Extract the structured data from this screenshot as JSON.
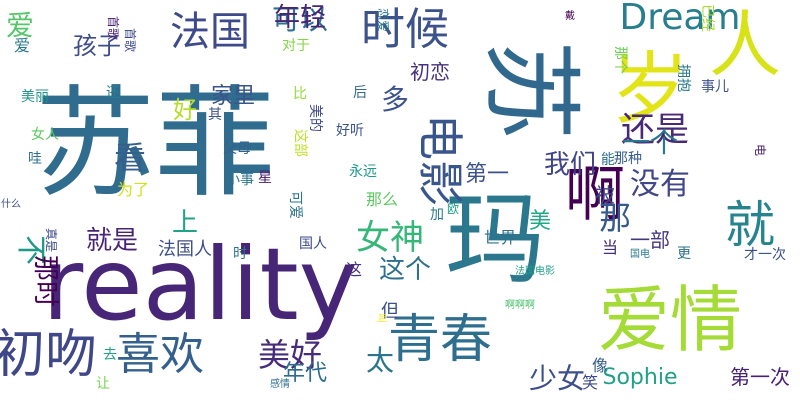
{
  "palette": {
    "dark_purple": "#440154",
    "indigo": "#46327e",
    "blue": "#365c8d",
    "teal": "#277f8e",
    "teal_green": "#1fa187",
    "green": "#4ac16d",
    "lime": "#a0da39",
    "yellow": "#fde725"
  },
  "words": [
    {
      "text": "苏菲",
      "color": "#2f6c8e"
    },
    {
      "text": "reality",
      "color": "#482677"
    },
    {
      "text": "苏",
      "color": "#31688e"
    },
    {
      "text": "岁",
      "color": "#e2e418"
    },
    {
      "text": "人",
      "color": "#d8e219"
    },
    {
      "text": "玛",
      "color": "#2a778e"
    },
    {
      "text": "爱情",
      "color": "#a5db36"
    },
    {
      "text": "啊",
      "color": "#440154"
    },
    {
      "text": "青春",
      "color": "#2e6e8e"
    },
    {
      "text": "初吻",
      "color": "#3f4788"
    },
    {
      "text": "喜欢",
      "color": "#34608d"
    },
    {
      "text": "就",
      "color": "#25848e"
    },
    {
      "text": "时候",
      "color": "#3b528b"
    },
    {
      "text": "法国",
      "color": "#3e4a89"
    },
    {
      "text": "电影",
      "color": "#39568c"
    },
    {
      "text": "Dream",
      "color": "#277f8e"
    },
    {
      "text": "女神",
      "color": "#35b779"
    },
    {
      "text": "还是",
      "color": "#482878"
    },
    {
      "text": "没有",
      "color": "#404688"
    },
    {
      "text": "美好",
      "color": "#472c7a"
    },
    {
      "text": "可以",
      "color": "#2c728e"
    },
    {
      "text": "年轻",
      "color": "#482475"
    },
    {
      "text": "孩子",
      "color": "#3e4c8a"
    },
    {
      "text": "爱",
      "color": "#54c568"
    },
    {
      "text": "我们",
      "color": "#414487"
    },
    {
      "text": "第一",
      "color": "#3b518b"
    },
    {
      "text": "一个",
      "color": "#2a788e"
    },
    {
      "text": "家里",
      "color": "#3a548c"
    },
    {
      "text": "看",
      "color": "#355f8d"
    },
    {
      "text": "那",
      "color": "#375a8c"
    },
    {
      "text": "被",
      "color": "#3f4889"
    },
    {
      "text": "一部",
      "color": "#453781"
    },
    {
      "text": "这个",
      "color": "#2d708e"
    },
    {
      "text": "就是",
      "color": "#482576"
    },
    {
      "text": "法国人",
      "color": "#3d4e8a"
    },
    {
      "text": "不",
      "color": "#1f9a8a"
    },
    {
      "text": "少女",
      "color": "#3c4f8a"
    },
    {
      "text": "年代",
      "color": "#2f6b8e"
    },
    {
      "text": "太",
      "color": "#2b748e"
    },
    {
      "text": "美",
      "color": "#22a884"
    },
    {
      "text": "上",
      "color": "#20a486"
    },
    {
      "text": "多",
      "color": "#3b528b"
    },
    {
      "text": "初恋",
      "color": "#46327e"
    },
    {
      "text": "好",
      "color": "#b5de2b"
    },
    {
      "text": "那时",
      "color": "#440154"
    },
    {
      "text": "Sophie",
      "color": "#1fa188"
    },
    {
      "text": "第一次",
      "color": "#482173"
    },
    {
      "text": "像",
      "color": "#365c8d"
    },
    {
      "text": "笑",
      "color": "#3e4989"
    },
    {
      "text": "世界",
      "color": "#2d718e"
    },
    {
      "text": "当",
      "color": "#472d7b"
    },
    {
      "text": "但",
      "color": "#3b528b"
    },
    {
      "text": "这",
      "color": "#46337f"
    },
    {
      "text": "小事",
      "color": "#2c738e"
    },
    {
      "text": "星",
      "color": "#481b6d"
    },
    {
      "text": "父母",
      "color": "#33638d"
    },
    {
      "text": "好听",
      "color": "#3a548c"
    },
    {
      "text": "永远",
      "color": "#1f988b"
    },
    {
      "text": "为了",
      "color": "#d0e11c"
    },
    {
      "text": "那么",
      "color": "#5ec962"
    },
    {
      "text": "国人",
      "color": "#3e4a89"
    },
    {
      "text": "加",
      "color": "#2a788e"
    },
    {
      "text": "可爱",
      "color": "#2c728e"
    },
    {
      "text": "这部",
      "color": "#bddf26"
    },
    {
      "text": "美的",
      "color": "#3f4788"
    },
    {
      "text": "比",
      "color": "#95d840"
    },
    {
      "text": "后",
      "color": "#31688e"
    },
    {
      "text": "还",
      "color": "#26818e"
    },
    {
      "text": "美丽",
      "color": "#20928c"
    },
    {
      "text": "女人",
      "color": "#5ec962"
    },
    {
      "text": "其",
      "color": "#3b528b"
    },
    {
      "text": "哇",
      "color": "#2c728e"
    },
    {
      "text": "什么",
      "color": "#3e4a89"
    },
    {
      "text": "真是",
      "color": "#3e4a89"
    },
    {
      "text": "去",
      "color": "#1fa188"
    },
    {
      "text": "让",
      "color": "#7ad151"
    },
    {
      "text": "叫",
      "color": "#fde725"
    },
    {
      "text": "啊啊啊",
      "color": "#4ac16d"
    },
    {
      "text": "法国电影",
      "color": "#1f9e89"
    },
    {
      "text": "国电",
      "color": "#2a788e"
    },
    {
      "text": "更",
      "color": "#2c728e"
    },
    {
      "text": "才一次",
      "color": "#3b528b"
    },
    {
      "text": "感情",
      "color": "#2d708e"
    },
    {
      "text": "那种",
      "color": "#365c8d"
    },
    {
      "text": "能",
      "color": "#2d708e"
    },
    {
      "text": "戴",
      "color": "#440154"
    },
    {
      "text": "拥抱",
      "color": "#2a788e"
    },
    {
      "text": "那个",
      "color": "#6ccd5a"
    },
    {
      "text": "事儿",
      "color": "#3b528b"
    },
    {
      "text": "已经",
      "color": "#a8db34"
    },
    {
      "text": "对于",
      "color": "#86d549"
    },
    {
      "text": "恋爱",
      "color": "#2a788e"
    },
    {
      "text": "首歌",
      "color": "#3e4a89"
    },
    {
      "text": "首歌",
      "color": "#482475"
    },
    {
      "text": "爱",
      "color": "#2a788e"
    },
    {
      "text": "时",
      "color": "#2c728e"
    },
    {
      "text": "欧",
      "color": "#1f9e89"
    },
    {
      "text": "电",
      "color": "#482475"
    }
  ]
}
